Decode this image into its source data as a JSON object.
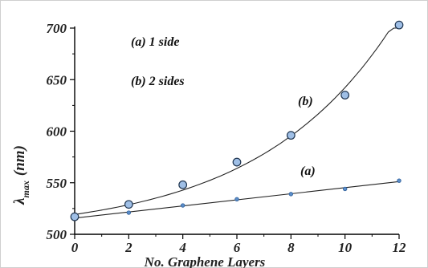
{
  "chart_data": {
    "type": "scatter",
    "ylabel_main": "λ",
    "ylabel_sub": "max",
    "ylabel_unit": "(nm)",
    "xlabel": "No. Graphene Layers",
    "xlim": [
      0,
      12
    ],
    "ylim": [
      500,
      700
    ],
    "xticks": [
      "0",
      "2",
      "4",
      "6",
      "8",
      "10",
      "12"
    ],
    "yticks": [
      "500",
      "550",
      "600",
      "650",
      "700"
    ],
    "legend": [
      "(a) 1 side",
      "(b) 2 sides"
    ],
    "curve_labels": {
      "a": "(a)",
      "b": "(b)"
    },
    "series": [
      {
        "name": "(a)",
        "x": [
          0,
          2,
          4,
          6,
          8,
          10,
          12
        ],
        "y": [
          516,
          521,
          528,
          534,
          539,
          544,
          552
        ],
        "fit": "linear",
        "color": "#5b8dc9"
      },
      {
        "name": "(b)",
        "x": [
          0,
          2,
          4,
          6,
          8,
          10,
          12
        ],
        "y": [
          517,
          529,
          548,
          570,
          596,
          635,
          703
        ],
        "fit": "exponential",
        "color": "#9fbfe6"
      }
    ]
  }
}
